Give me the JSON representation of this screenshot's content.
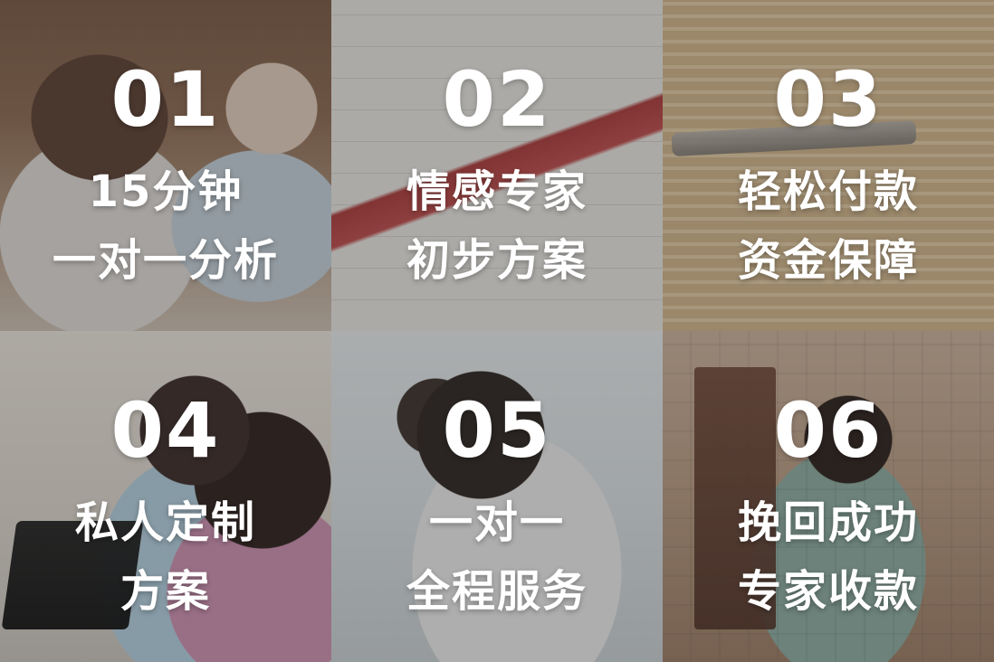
{
  "tiles": [
    {
      "number": "01",
      "line1": "15分钟",
      "line2": "一对一分析"
    },
    {
      "number": "02",
      "line1": "情感专家",
      "line2": "初步方案"
    },
    {
      "number": "03",
      "line1": "轻松付款",
      "line2": "资金保障"
    },
    {
      "number": "04",
      "line1": "私人定制",
      "line2": "方案"
    },
    {
      "number": "05",
      "line1": "一对一",
      "line2": "全程服务"
    },
    {
      "number": "06",
      "line1": "挽回成功",
      "line2": "专家收款"
    }
  ],
  "colors": {
    "text": "#ffffff",
    "overlay": "#282828"
  }
}
